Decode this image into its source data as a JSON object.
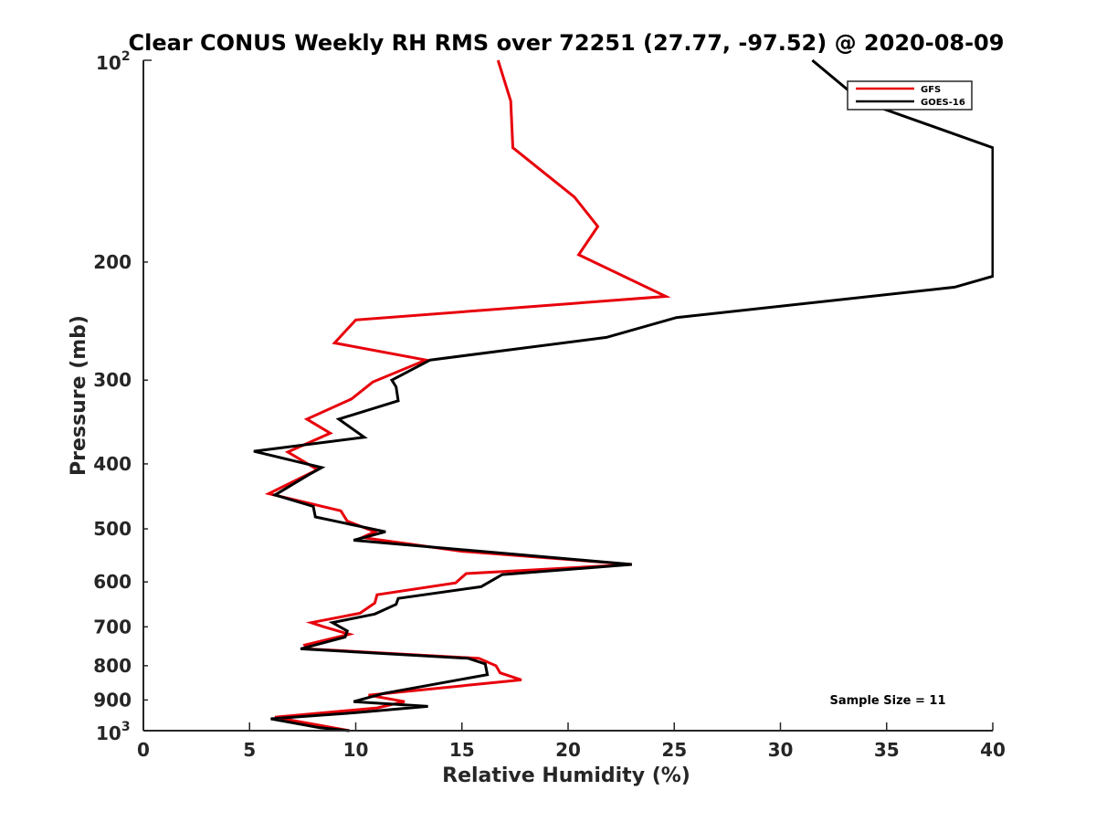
{
  "chart_data": {
    "type": "line",
    "title": "Clear CONUS Weekly RH RMS over 72251 (27.77, -97.52) @ 2020-08-09",
    "xlabel": "Relative Humidity (%)",
    "ylabel": "Pressure (mb)",
    "xlim": [
      0,
      40
    ],
    "ylim": [
      100,
      1000
    ],
    "yscale": "log",
    "y_reversed": true,
    "grid": false,
    "legend_position": "top-right",
    "x_ticks": [
      "0",
      "5",
      "10",
      "15",
      "20",
      "25",
      "30",
      "35",
      "40"
    ],
    "y_ticks": [
      "200",
      "300",
      "400",
      "500",
      "600",
      "700",
      "800",
      "900"
    ],
    "y_tick_values": [
      200,
      300,
      400,
      500,
      600,
      700,
      800,
      900
    ],
    "y_top_label": {
      "base": "10",
      "exp": "2"
    },
    "y_bottom_label": {
      "base": "10",
      "exp": "3"
    },
    "annotation": "Sample Size = 11",
    "series": [
      {
        "name": "GFS",
        "color": "#e8000b",
        "points": [
          [
            16.7,
            100
          ],
          [
            17.3,
            115
          ],
          [
            17.4,
            135
          ],
          [
            20.3,
            160
          ],
          [
            21.4,
            177
          ],
          [
            20.5,
            195
          ],
          [
            24.6,
            225
          ],
          [
            10.0,
            244
          ],
          [
            9.0,
            264
          ],
          [
            13.3,
            280
          ],
          [
            10.8,
            302
          ],
          [
            9.8,
            320
          ],
          [
            7.7,
            343
          ],
          [
            8.8,
            360
          ],
          [
            6.8,
            384
          ],
          [
            8.2,
            408
          ],
          [
            5.9,
            443
          ],
          [
            9.3,
            470
          ],
          [
            9.6,
            487
          ],
          [
            10.9,
            505
          ],
          [
            10.3,
            515
          ],
          [
            15.0,
            540
          ],
          [
            23.0,
            565
          ],
          [
            15.2,
            583
          ],
          [
            14.7,
            602
          ],
          [
            11.0,
            627
          ],
          [
            10.9,
            645
          ],
          [
            10.2,
            668
          ],
          [
            7.9,
            690
          ],
          [
            8.5,
            700
          ],
          [
            9.7,
            718
          ],
          [
            7.6,
            745
          ],
          [
            7.7,
            755
          ],
          [
            15.8,
            780
          ],
          [
            16.6,
            800
          ],
          [
            16.8,
            820
          ],
          [
            17.8,
            840
          ],
          [
            10.6,
            885
          ],
          [
            12.3,
            905
          ],
          [
            11.0,
            925
          ],
          [
            6.2,
            955
          ],
          [
            9.7,
            1000
          ]
        ]
      },
      {
        "name": "GOES-16",
        "color": "#000000",
        "points": [
          [
            31.5,
            100
          ],
          [
            33.8,
            115
          ],
          [
            40.0,
            135
          ],
          [
            40.0,
            210
          ],
          [
            38.2,
            218
          ],
          [
            25.1,
            242
          ],
          [
            21.8,
            259
          ],
          [
            13.5,
            280
          ],
          [
            11.7,
            300
          ],
          [
            11.9,
            307
          ],
          [
            12.0,
            322
          ],
          [
            9.2,
            343
          ],
          [
            10.4,
            365
          ],
          [
            5.2,
            383
          ],
          [
            8.4,
            405
          ],
          [
            7.8,
            415
          ],
          [
            6.2,
            445
          ],
          [
            8.0,
            463
          ],
          [
            8.1,
            480
          ],
          [
            11.4,
            505
          ],
          [
            9.9,
            520
          ],
          [
            23.0,
            565
          ],
          [
            16.9,
            585
          ],
          [
            15.9,
            610
          ],
          [
            12.0,
            635
          ],
          [
            11.9,
            648
          ],
          [
            10.9,
            670
          ],
          [
            8.9,
            690
          ],
          [
            9.6,
            710
          ],
          [
            9.5,
            725
          ],
          [
            7.4,
            755
          ],
          [
            15.3,
            780
          ],
          [
            16.1,
            795
          ],
          [
            16.2,
            825
          ],
          [
            11.3,
            880
          ],
          [
            9.9,
            905
          ],
          [
            13.4,
            920
          ],
          [
            10.0,
            940
          ],
          [
            6.0,
            960
          ],
          [
            8.3,
            990
          ],
          [
            9.7,
            1000
          ]
        ]
      }
    ]
  }
}
